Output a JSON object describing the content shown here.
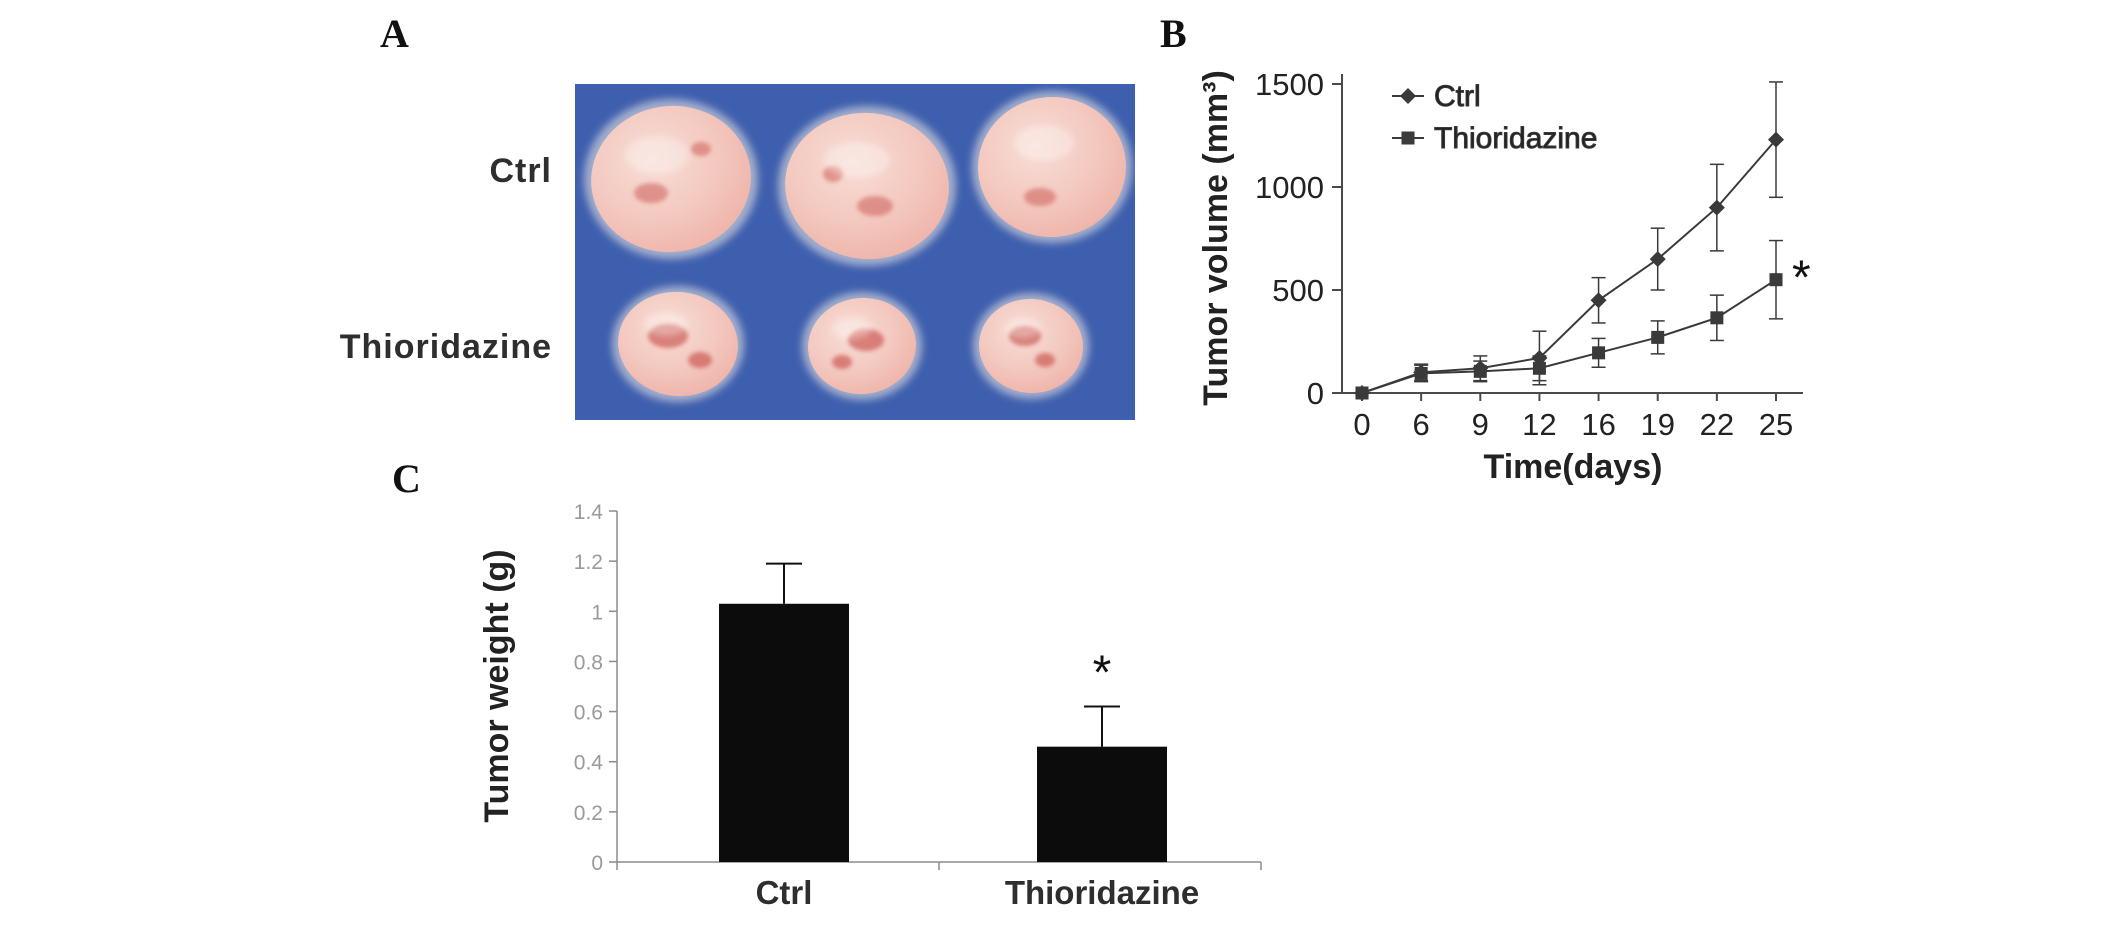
{
  "panels": {
    "a": {
      "label": "A",
      "rows": [
        "Ctrl",
        "Thioridazine"
      ]
    },
    "b": {
      "label": "B"
    },
    "c": {
      "label": "C"
    }
  },
  "colors": {
    "photo_background": "#3e5fae",
    "tumor_center": "#f8ded6",
    "tumor_edge": "#eeb0a5",
    "tumor_red": "#c9524e",
    "tumor_fuzz": "#f6efe7",
    "series": "#3a3a3a",
    "axis_b": "#4a4a4a",
    "axis_c": "#8c8c8c",
    "c_tick_label": "#9a9a9a",
    "bar": "#0c0c0c",
    "text": "#222222"
  },
  "chart_data": [
    {
      "id": "tumor-volume",
      "type": "line",
      "title": "",
      "xlabel": "Time(days)",
      "ylabel": "Tumor volume (mm³)",
      "x_ticks": [
        0,
        6,
        9,
        12,
        16,
        19,
        22,
        25
      ],
      "ylim": [
        0,
        1500
      ],
      "y_ticks": [
        0,
        500,
        1000,
        1500
      ],
      "legend_position": "top-left",
      "grid": false,
      "series": [
        {
          "name": "Ctrl",
          "marker": "diamond",
          "values": [
            0,
            100,
            120,
            170,
            450,
            650,
            900,
            1230
          ],
          "errors": [
            0,
            40,
            60,
            130,
            110,
            150,
            210,
            280
          ]
        },
        {
          "name": "Thioridazine",
          "marker": "square",
          "values": [
            0,
            95,
            105,
            120,
            195,
            270,
            365,
            550
          ],
          "errors": [
            0,
            40,
            50,
            60,
            70,
            80,
            110,
            190
          ]
        }
      ],
      "annotation": {
        "text": "*",
        "series": "Thioridazine",
        "dx": 16,
        "dy": 14
      }
    },
    {
      "id": "tumor-weight",
      "type": "bar",
      "title": "",
      "xlabel": "",
      "ylabel": "Tumor weight (g)",
      "categories": [
        "Ctrl",
        "Thioridazine"
      ],
      "values": [
        1.03,
        0.46
      ],
      "errors": [
        0.16,
        0.16
      ],
      "ylim": [
        0,
        1.4
      ],
      "y_ticks": [
        0,
        0.2,
        0.4,
        0.6,
        0.8,
        1,
        1.2,
        1.4
      ],
      "grid": false,
      "annotation": "*"
    }
  ]
}
